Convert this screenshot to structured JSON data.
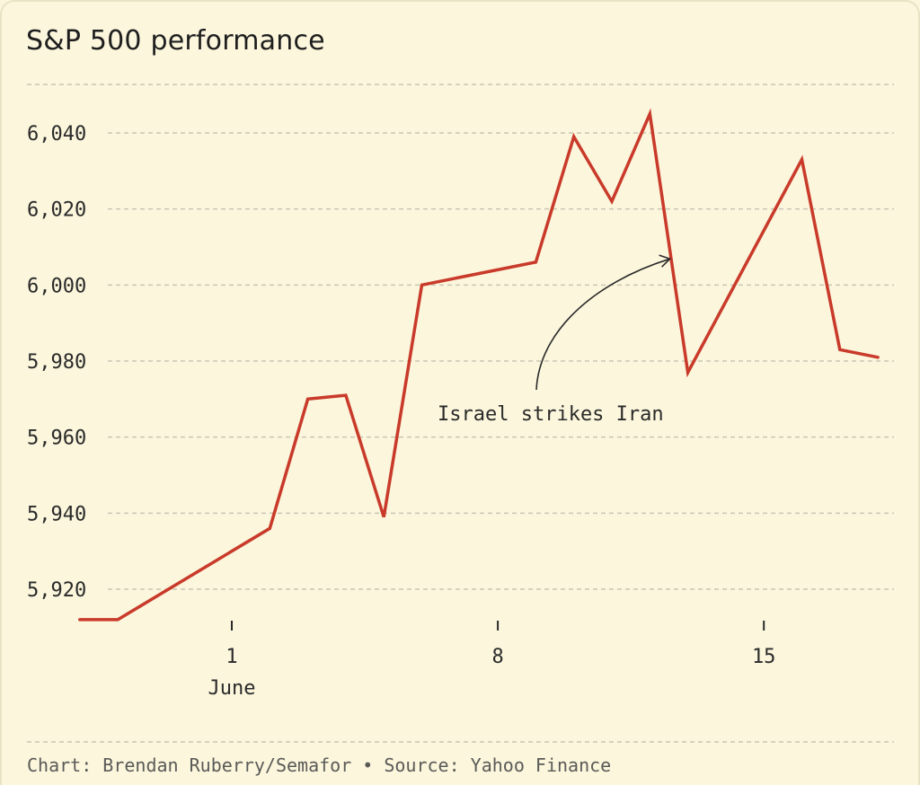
{
  "chart_data": {
    "type": "line",
    "title": "S&P 500 performance",
    "xlabel": "",
    "ylabel": "",
    "grid": true,
    "ylim": [
      5905,
      6050
    ],
    "y_ticks": [
      5920,
      5940,
      5960,
      5980,
      6000,
      6020,
      6040
    ],
    "y_tick_labels": [
      "5,920",
      "5,940",
      "5,960",
      "5,980",
      "6,000",
      "6,020",
      "6,040"
    ],
    "x_range": [
      "2025-05-28",
      "2025-06-17"
    ],
    "x_ticks": [
      {
        "date": "2025-06-01",
        "label": "1",
        "sublabel": "June"
      },
      {
        "date": "2025-06-08",
        "label": "8",
        "sublabel": ""
      },
      {
        "date": "2025-06-15",
        "label": "15",
        "sublabel": ""
      }
    ],
    "series": [
      {
        "color": "#c93a2a",
        "points": [
          {
            "x": "2025-05-28",
            "y": 5912
          },
          {
            "x": "2025-05-29",
            "y": 5912
          },
          {
            "x": "2025-06-02",
            "y": 5936
          },
          {
            "x": "2025-06-03",
            "y": 5970
          },
          {
            "x": "2025-06-04",
            "y": 5971
          },
          {
            "x": "2025-06-05",
            "y": 5939
          },
          {
            "x": "2025-06-06",
            "y": 6000
          },
          {
            "x": "2025-06-09",
            "y": 6006
          },
          {
            "x": "2025-06-10",
            "y": 6039
          },
          {
            "x": "2025-06-11",
            "y": 6022
          },
          {
            "x": "2025-06-12",
            "y": 6045
          },
          {
            "x": "2025-06-13",
            "y": 5977
          },
          {
            "x": "2025-06-16",
            "y": 6033
          },
          {
            "x": "2025-06-17",
            "y": 5983
          },
          {
            "x": "2025-06-18",
            "y": 5981
          }
        ]
      }
    ],
    "annotations": [
      {
        "text": "Israel strikes Iran",
        "target_x": "2025-06-13",
        "target_y": 6005
      }
    ]
  },
  "footer": "Chart: Brendan Ruberry/Semafor • Source: Yahoo Finance",
  "colors": {
    "background": "#fbf6dc",
    "line": "#c93a2a",
    "grid": "#c9c6b4",
    "text": "#2a2a2a"
  }
}
